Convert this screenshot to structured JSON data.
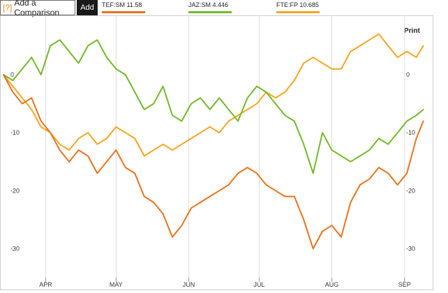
{
  "toolbar": {
    "compare_icon": "[?]",
    "compare_label": "Add a Comparison",
    "add_label": "Add"
  },
  "legend": [
    {
      "label": "TEF:SM 11.58",
      "color": "#e8731e"
    },
    {
      "label": "JAZ:SM 4.446",
      "color": "#72b82a"
    },
    {
      "label": "FTE:FP 10.685",
      "color": "#f5a623"
    }
  ],
  "print_label": "Print",
  "chart_data": {
    "type": "line",
    "xlabel": "",
    "ylabel": "",
    "ylim": [
      -35,
      10
    ],
    "y_ticks": [
      0,
      -10,
      -20,
      -30
    ],
    "y_tick_labels": [
      "0",
      "-10",
      "-20",
      "-30"
    ],
    "x_ticks": [
      {
        "label": "APR",
        "day": 18
      },
      {
        "label": "MAY",
        "day": 48
      },
      {
        "label": "JUN",
        "day": 79
      },
      {
        "label": "JUL",
        "day": 109
      },
      {
        "label": "AUG",
        "day": 140
      },
      {
        "label": "SEP",
        "day": 171
      }
    ],
    "x_range": [
      0,
      180
    ],
    "series": [
      {
        "name": "TEF:SM 11.58",
        "color": "#e8731e",
        "x": [
          0,
          4,
          8,
          12,
          16,
          20,
          24,
          28,
          32,
          36,
          40,
          44,
          48,
          52,
          56,
          60,
          64,
          68,
          72,
          76,
          80,
          84,
          88,
          92,
          96,
          100,
          104,
          108,
          112,
          116,
          120,
          124,
          128,
          132,
          136,
          140,
          144,
          148,
          152,
          156,
          160,
          164,
          168,
          172,
          176,
          179
        ],
        "y": [
          0,
          -3,
          -5,
          -4,
          -8,
          -10,
          -13,
          -15,
          -13,
          -14,
          -17,
          -15,
          -13,
          -16,
          -17,
          -21,
          -22,
          -24,
          -28,
          -26,
          -23,
          -22,
          -21,
          -20,
          -19,
          -17,
          -16,
          -17,
          -19,
          -20,
          -21,
          -21,
          -25,
          -30,
          -27,
          -26,
          -28,
          -22,
          -19,
          -18,
          -16,
          -17,
          -19,
          -17,
          -11,
          -8
        ]
      },
      {
        "name": "JAZ:SM 4.446",
        "color": "#72b82a",
        "x": [
          0,
          4,
          8,
          12,
          16,
          20,
          24,
          28,
          32,
          36,
          40,
          44,
          48,
          52,
          56,
          60,
          64,
          68,
          72,
          76,
          80,
          84,
          88,
          92,
          96,
          100,
          104,
          108,
          112,
          116,
          120,
          124,
          128,
          132,
          136,
          140,
          144,
          148,
          152,
          156,
          160,
          164,
          168,
          172,
          176,
          179
        ],
        "y": [
          0,
          -1,
          1,
          3,
          0,
          5,
          6,
          4,
          2,
          5,
          6,
          3,
          1,
          0,
          -3,
          -6,
          -5,
          -2,
          -7,
          -8,
          -5,
          -4,
          -6,
          -4,
          -6,
          -8,
          -4,
          -2,
          -3,
          -5,
          -7,
          -8,
          -12,
          -17,
          -10,
          -13,
          -14,
          -15,
          -14,
          -13,
          -11,
          -12,
          -10,
          -8,
          -7,
          -6
        ]
      },
      {
        "name": "FTE:FP 10.685",
        "color": "#f5a623",
        "x": [
          0,
          4,
          8,
          12,
          16,
          20,
          24,
          28,
          32,
          36,
          40,
          44,
          48,
          52,
          56,
          60,
          64,
          68,
          72,
          76,
          80,
          84,
          88,
          92,
          96,
          100,
          104,
          108,
          112,
          116,
          120,
          124,
          128,
          132,
          136,
          140,
          144,
          148,
          152,
          156,
          160,
          164,
          168,
          172,
          176,
          179
        ],
        "y": [
          0,
          -2,
          -4,
          -6,
          -9,
          -10,
          -12,
          -13,
          -11,
          -10,
          -12,
          -11,
          -9,
          -10,
          -11,
          -14,
          -13,
          -12,
          -13,
          -12,
          -11,
          -10,
          -9,
          -10,
          -8,
          -7,
          -6,
          -5,
          -3,
          -4,
          -3,
          -1,
          2,
          3,
          2,
          1,
          1,
          4,
          5,
          6,
          7,
          5,
          3,
          4,
          3,
          5
        ]
      }
    ]
  }
}
